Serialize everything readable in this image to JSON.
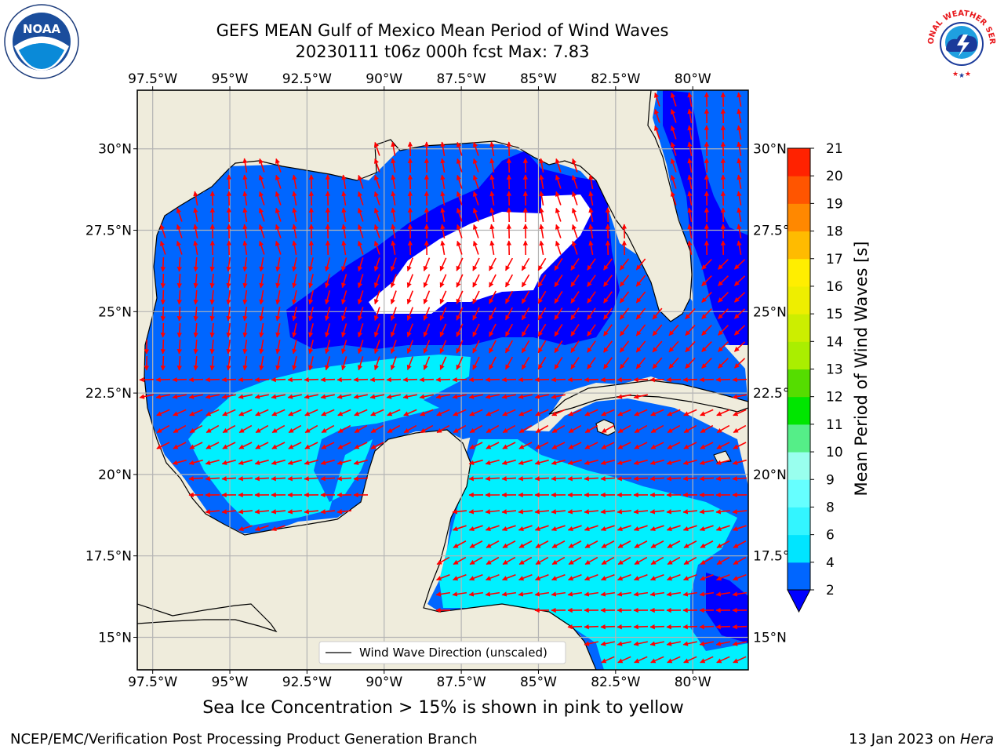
{
  "header": {
    "title_line1": "GEFS MEAN Gulf of Mexico Mean Period of Wind Waves",
    "title_line2": "20230111 t06z 000h fcst   Max: 7.83"
  },
  "map": {
    "lon_ticks": [
      "97.5°W",
      "95°W",
      "92.5°W",
      "90°W",
      "87.5°W",
      "85°W",
      "82.5°W",
      "80°W"
    ],
    "lat_ticks": [
      "30°N",
      "27.5°N",
      "25°N",
      "22.5°N",
      "20°N",
      "17.5°N",
      "15°N"
    ],
    "lon_values": [
      -97.5,
      -95,
      -92.5,
      -90,
      -87.5,
      -85,
      -82.5,
      -80
    ],
    "lat_values": [
      30,
      27.5,
      25,
      22.5,
      20,
      17.5,
      15
    ],
    "lon_range": [
      -98,
      -78.2
    ],
    "lat_range": [
      14.0,
      31.8
    ],
    "legend": "Wind Wave Direction (unscaled)",
    "colors": {
      "land": "#efecdc",
      "coast": "#000000",
      "grid": "#b4b4b4",
      "arrow": "#ff0000",
      "no_data": "#ffffff"
    }
  },
  "colorbar": {
    "label": "Mean Period of Wind Waves [s]",
    "ticks": [
      "2",
      "4",
      "6",
      "8",
      "9",
      "10",
      "11",
      "12",
      "13",
      "14",
      "15",
      "16",
      "17",
      "18",
      "19",
      "20",
      "21"
    ],
    "levels": [
      2,
      4,
      6,
      8,
      9,
      10,
      11,
      12,
      13,
      14,
      15,
      16,
      17,
      18,
      19,
      20,
      21
    ],
    "colors": [
      "#0066ff",
      "#00e5ff",
      "#33f5ff",
      "#66ffff",
      "#99ffee",
      "#55ee88",
      "#00e600",
      "#55dd00",
      "#aaee00",
      "#ccee00",
      "#eeee00",
      "#ffee00",
      "#ffbb00",
      "#ff8800",
      "#ff5500",
      "#ff2200"
    ],
    "extend_color": "#0000ff"
  },
  "chart_data": {
    "type": "heatmap",
    "variable": "Mean Period of Wind Waves [s]",
    "max_value": 7.83,
    "regions": [
      {
        "zone": "central Gulf deep water",
        "period_s": "no data (white)"
      },
      {
        "zone": "ring around central Gulf",
        "period_s": "<2"
      },
      {
        "zone": "northern & western Gulf",
        "period_s": "2-4"
      },
      {
        "zone": "Bay of Campeche & Caribbean",
        "period_s": "4-8"
      }
    ]
  },
  "footer": {
    "note": "Sea Ice Concentration > 15% is shown in pink to yellow",
    "credit": "NCEP/EMC/Verification Post Processing Product Generation Branch",
    "date": "13 Jan 2023 on ",
    "host": "Hera"
  },
  "logos": {
    "left": {
      "icon": "noaa-logo",
      "text": "NOAA"
    },
    "right": {
      "icon": "nws-logo",
      "text": "NATIONAL WEATHER SERVICE"
    }
  }
}
